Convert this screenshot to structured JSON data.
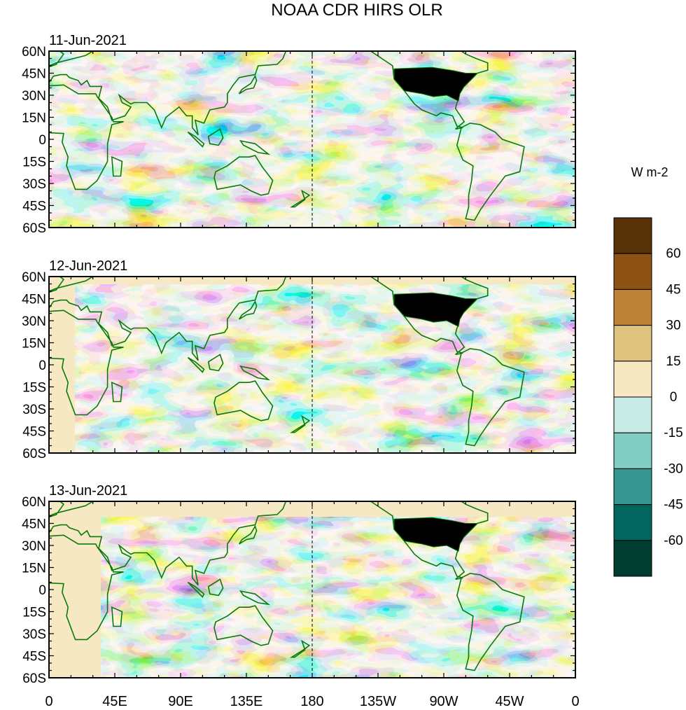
{
  "title": "NOAA CDR HIRS OLR",
  "panels": [
    {
      "date": "11-Jun-2021"
    },
    {
      "date": "12-Jun-2021"
    },
    {
      "date": "13-Jun-2021"
    }
  ],
  "lat_ticks": [
    "60N",
    "45N",
    "30N",
    "15N",
    "0",
    "15S",
    "30S",
    "45S",
    "60S"
  ],
  "lon_ticks": [
    "0",
    "45E",
    "90E",
    "135E",
    "180",
    "135W",
    "90W",
    "45W",
    "0"
  ],
  "colorbar": {
    "unit": "W m-2",
    "labels": [
      "60",
      "45",
      "30",
      "15",
      "0",
      "-15",
      "-30",
      "-45",
      "-60"
    ],
    "colors": [
      "#573209",
      "#8d5214",
      "#bf8337",
      "#dfc27d",
      "#f6e8c3",
      "#c7eae5",
      "#80cdc1",
      "#35978f",
      "#01665e",
      "#003c30"
    ]
  },
  "map": {
    "lon_range": [
      0,
      360
    ],
    "lat_range": [
      -60,
      60
    ],
    "coastline_color": "#0a7a0a",
    "dateline_lon": 180
  }
}
